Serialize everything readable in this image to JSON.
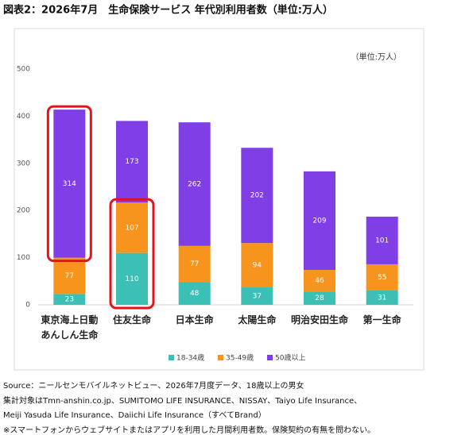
{
  "chart_data": {
    "type": "stacked_bar",
    "title": "図表2：2026年7月　生命保険サービス 年代別利用者数（単位:万人）",
    "unit_label": "（単位:万人）",
    "categories": [
      "東京海上日動\nあんしん生命",
      "住友生命",
      "日本生命",
      "太陽生命",
      "明治安田生命",
      "第一生命"
    ],
    "series": [
      {
        "name": "18-34歳",
        "color": "#3cbfb4",
        "values": [
          23,
          110,
          48,
          37,
          28,
          31
        ]
      },
      {
        "name": "35-49歳",
        "color": "#f7941d",
        "values": [
          77,
          107,
          77,
          94,
          46,
          55
        ]
      },
      {
        "name": "50歳以上",
        "color": "#7f3ee6",
        "values": [
          314,
          173,
          262,
          202,
          209,
          101
        ]
      }
    ],
    "ylim": [
      0,
      500
    ],
    "yticks": [
      0,
      100,
      200,
      300,
      400,
      500
    ],
    "grid": false,
    "legend": "bottom",
    "notes": [
      "Source：ニールセンモバイルネットビュー、2026年7月度データ、18歳以上の男女",
      "集計対象はTmn-anshin.co.jp、SUMITOMO LIFE INSURANCE、NISSAY、Taiyo Life Insurance、",
      "Meiji Yasuda Life Insurance、Daiichi Life Insurance（すべてBrand）",
      "※スマートフォンからウェブサイトまたはアプリを利用した月間利用者数。保険契約の有無を問わない。"
    ]
  }
}
